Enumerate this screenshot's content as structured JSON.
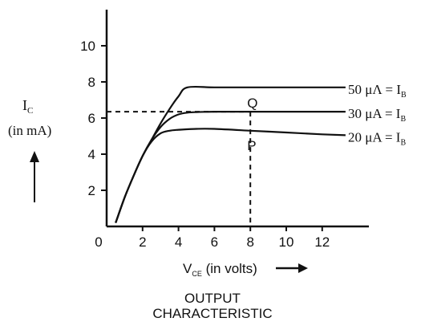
{
  "chart_data": {
    "type": "line",
    "title": "OUTPUT CHARACTERISTIC",
    "title_line1": "OUTPUT",
    "title_line2": "CHARACTERISTIC",
    "xlabel_main": "V",
    "xlabel_sub": "CE",
    "xlabel_rest": " (in volts)",
    "ylabel_main": "I",
    "ylabel_sub": "C",
    "ylabel_unit": "(in mA)",
    "xlim": [
      0,
      13.5
    ],
    "ylim": [
      0,
      11.5
    ],
    "x_ticks": [
      0,
      2,
      4,
      6,
      8,
      10,
      12
    ],
    "y_ticks": [
      2,
      4,
      6,
      8,
      10
    ],
    "series": [
      {
        "name": "50 μΛ = I",
        "name_sub": "B",
        "x": [
          0.5,
          1,
          1.5,
          2,
          2.5,
          3,
          3.5,
          4,
          4.5,
          6,
          8,
          10,
          12,
          13.3
        ],
        "y": [
          0.2,
          1.6,
          2.8,
          3.9,
          4.8,
          5.7,
          6.5,
          7.2,
          7.7,
          7.7,
          7.7,
          7.7,
          7.7,
          7.7
        ]
      },
      {
        "name": "30 μA = I",
        "name_sub": "B",
        "x": [
          0.5,
          1,
          1.5,
          2,
          2.5,
          3,
          3.5,
          4,
          4.5,
          5,
          6,
          8,
          10,
          12,
          13.3
        ],
        "y": [
          0.2,
          1.6,
          2.8,
          3.9,
          4.8,
          5.5,
          5.95,
          6.2,
          6.3,
          6.33,
          6.35,
          6.35,
          6.35,
          6.35,
          6.35
        ]
      },
      {
        "name": "20 μA = I",
        "name_sub": "B",
        "x": [
          0.5,
          1,
          1.5,
          2,
          2.5,
          3,
          3.5,
          4,
          5,
          6,
          8,
          10,
          12,
          13.3
        ],
        "y": [
          0.2,
          1.6,
          2.8,
          3.9,
          4.7,
          5.15,
          5.3,
          5.35,
          5.4,
          5.4,
          5.3,
          5.2,
          5.1,
          5.05
        ]
      }
    ],
    "annotations": [
      {
        "label": "Q",
        "x": 8,
        "y": 6.35
      },
      {
        "label": "P",
        "x": 8,
        "y": 5.3
      }
    ],
    "operating_point": {
      "x": 8,
      "y": 6.35
    }
  }
}
